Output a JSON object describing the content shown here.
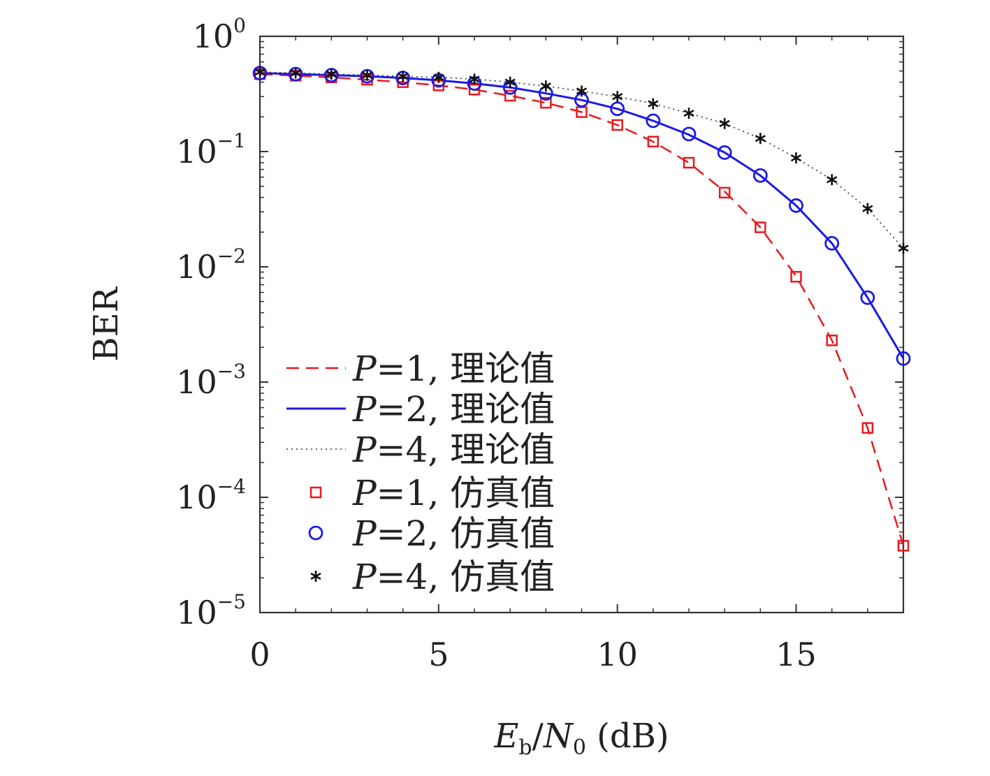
{
  "chart_data": {
    "type": "line",
    "title": "",
    "xlabel": {
      "main": "E",
      "sub1": "b",
      "slash": "/",
      "main2": "N",
      "sub2": "0",
      "unit": " (dB)"
    },
    "ylabel": "BER",
    "xlim": [
      0,
      18
    ],
    "ylim": [
      1e-05,
      1
    ],
    "yscale": "log",
    "grid": false,
    "legend_position": "lower-left",
    "x_ticks": [
      {
        "value": 0,
        "label": "0"
      },
      {
        "value": 5,
        "label": "5"
      },
      {
        "value": 10,
        "label": "10"
      },
      {
        "value": 15,
        "label": "15"
      }
    ],
    "y_ticks": [
      {
        "value": 1,
        "base": "10",
        "exp": "0"
      },
      {
        "value": 0.1,
        "base": "10",
        "exp": "−1"
      },
      {
        "value": 0.01,
        "base": "10",
        "exp": "−2"
      },
      {
        "value": 0.001,
        "base": "10",
        "exp": "−3"
      },
      {
        "value": 0.0001,
        "base": "10",
        "exp": "−4"
      },
      {
        "value": 1e-05,
        "base": "10",
        "exp": "−5"
      }
    ],
    "x": [
      0,
      1,
      2,
      3,
      4,
      5,
      6,
      7,
      8,
      9,
      10,
      11,
      12,
      13,
      14,
      15,
      16,
      17,
      18
    ],
    "series": [
      {
        "name": "P=1, 理论值",
        "label_var": "P",
        "label_rest": "=1, 理论值",
        "kind": "line",
        "color": "#e8191c",
        "dash": "18,10",
        "width": 2.5,
        "values": [
          0.47,
          0.455,
          0.44,
          0.42,
          0.4,
          0.375,
          0.345,
          0.305,
          0.265,
          0.22,
          0.17,
          0.122,
          0.08,
          0.045,
          0.022,
          0.0083,
          0.0023,
          0.0004,
          3.8e-05
        ]
      },
      {
        "name": "P=2, 理论值",
        "label_var": "P",
        "label_rest": "=2, 理论值",
        "kind": "line",
        "color": "#1a1ae6",
        "dash": "",
        "width": 3,
        "values": [
          0.48,
          0.47,
          0.46,
          0.45,
          0.435,
          0.415,
          0.39,
          0.36,
          0.32,
          0.28,
          0.235,
          0.185,
          0.14,
          0.098,
          0.062,
          0.034,
          0.016,
          0.0054,
          0.0016
        ]
      },
      {
        "name": "P=4, 理论值",
        "label_var": "P",
        "label_rest": "=4, 理论值",
        "kind": "line",
        "color": "#333333",
        "dash": "2,5",
        "width": 1.6,
        "values": [
          0.49,
          0.48,
          0.47,
          0.46,
          0.45,
          0.44,
          0.425,
          0.4,
          0.37,
          0.335,
          0.3,
          0.26,
          0.215,
          0.175,
          0.13,
          0.088,
          0.057,
          0.032,
          0.0145
        ]
      },
      {
        "name": "P=1, 仿真值",
        "label_var": "P",
        "label_rest": "=1, 仿真值",
        "kind": "marker",
        "marker": "square",
        "color": "#e8191c",
        "values": [
          0.47,
          0.455,
          0.44,
          0.42,
          0.4,
          0.375,
          0.345,
          0.305,
          0.265,
          0.22,
          0.17,
          0.122,
          0.08,
          0.044,
          0.022,
          0.0082,
          0.0023,
          0.0004,
          3.8e-05
        ]
      },
      {
        "name": "P=2, 仿真值",
        "label_var": "P",
        "label_rest": "=2, 仿真值",
        "kind": "marker",
        "marker": "circle",
        "color": "#1a1ae6",
        "values": [
          0.48,
          0.47,
          0.46,
          0.45,
          0.435,
          0.415,
          0.39,
          0.36,
          0.32,
          0.28,
          0.235,
          0.185,
          0.142,
          0.098,
          0.062,
          0.034,
          0.016,
          0.0054,
          0.0016
        ]
      },
      {
        "name": "P=4, 仿真值",
        "label_var": "P",
        "label_rest": "=4, 仿真值",
        "kind": "marker",
        "marker": "star",
        "color": "#111111",
        "values": [
          0.49,
          0.48,
          0.47,
          0.46,
          0.45,
          0.44,
          0.425,
          0.4,
          0.37,
          0.335,
          0.3,
          0.26,
          0.215,
          0.175,
          0.13,
          0.088,
          0.057,
          0.032,
          0.0145
        ]
      }
    ]
  }
}
